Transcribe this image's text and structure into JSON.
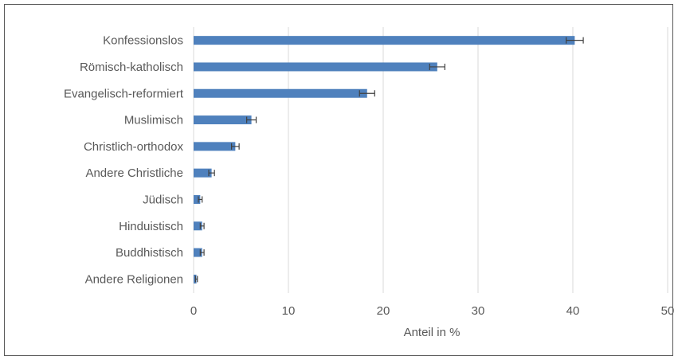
{
  "chart_data": {
    "type": "bar",
    "orientation": "horizontal",
    "categories": [
      "Konfessionslos",
      "Römisch-katholisch",
      "Evangelisch-reformiert",
      "Muslimisch",
      "Christlich-orthodox",
      "Andere Christliche",
      "Jüdisch",
      "Hinduistisch",
      "Buddhistisch",
      "Andere Religionen"
    ],
    "values": [
      40.2,
      25.7,
      18.3,
      6.1,
      4.4,
      1.9,
      0.7,
      0.9,
      0.9,
      0.3
    ],
    "errors": [
      0.9,
      0.8,
      0.8,
      0.5,
      0.4,
      0.3,
      0.2,
      0.2,
      0.2,
      0.1
    ],
    "xlabel": "Anteil in %",
    "xlim": [
      0,
      50
    ],
    "xticks": [
      "0",
      "10",
      "20",
      "30",
      "40",
      "50"
    ],
    "grid": "vertical",
    "bar_color": "#4f81bd",
    "error_color": "#404040",
    "grid_color": "#d9d9d9"
  }
}
